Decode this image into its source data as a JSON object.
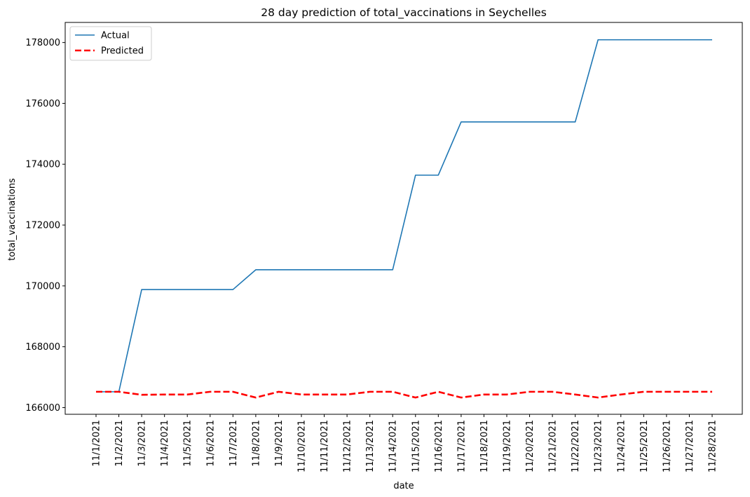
{
  "chart_data": {
    "type": "line",
    "title": "28 day prediction of total_vaccinations in Seychelles",
    "xlabel": "date",
    "ylabel": "total_vaccinations",
    "x": [
      "11/1/2021",
      "11/2/2021",
      "11/3/2021",
      "11/4/2021",
      "11/5/2021",
      "11/6/2021",
      "11/7/2021",
      "11/8/2021",
      "11/9/2021",
      "11/10/2021",
      "11/11/2021",
      "11/12/2021",
      "11/13/2021",
      "11/14/2021",
      "11/15/2021",
      "11/16/2021",
      "11/17/2021",
      "11/18/2021",
      "11/19/2021",
      "11/20/2021",
      "11/21/2021",
      "11/22/2021",
      "11/23/2021",
      "11/24/2021",
      "11/25/2021",
      "11/26/2021",
      "11/27/2021",
      "11/28/2021"
    ],
    "ylim": [
      165780,
      178660
    ],
    "yticks": [
      166000,
      168000,
      170000,
      172000,
      174000,
      176000,
      178000
    ],
    "ytick_labels": [
      "166000",
      "168000",
      "170000",
      "172000",
      "174000",
      "176000",
      "178000"
    ],
    "grid": false,
    "legend_position": "upper left",
    "series": [
      {
        "name": "Actual",
        "color": "#1f77b4",
        "style": "solid",
        "values": [
          166520,
          166520,
          169880,
          169880,
          169880,
          169880,
          169880,
          170530,
          170530,
          170530,
          170530,
          170530,
          170530,
          170530,
          173640,
          173640,
          175390,
          175390,
          175390,
          175390,
          175390,
          175390,
          178090,
          178090,
          178090,
          178090,
          178090,
          178090
        ]
      },
      {
        "name": "Predicted",
        "color": "#ff0000",
        "style": "dashed",
        "values": [
          166520,
          166520,
          166420,
          166430,
          166430,
          166520,
          166520,
          166330,
          166520,
          166430,
          166430,
          166430,
          166520,
          166520,
          166330,
          166520,
          166330,
          166430,
          166430,
          166520,
          166520,
          166430,
          166330,
          166430,
          166520,
          166520,
          166520,
          166520
        ]
      }
    ]
  }
}
